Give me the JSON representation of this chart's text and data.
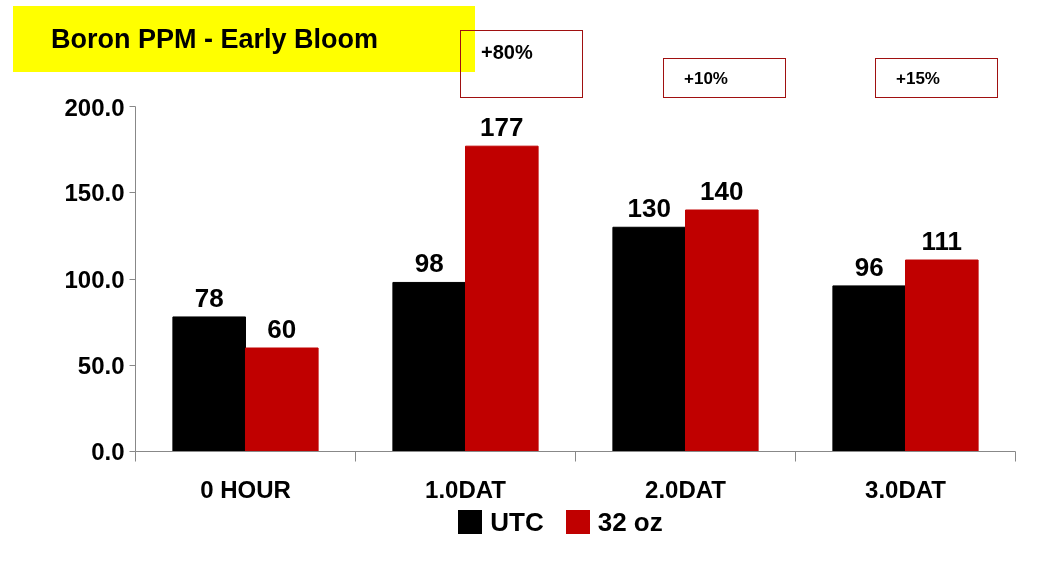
{
  "chart_data": {
    "type": "bar",
    "title": "Boron PPM - Early Bloom",
    "categories": [
      "0 HOUR",
      "1.0DAT",
      "2.0DAT",
      "3.0DAT"
    ],
    "series": [
      {
        "name": "UTC",
        "color": "#000000",
        "values": [
          78,
          98,
          130,
          96
        ]
      },
      {
        "name": "32 oz",
        "color": "#c00000",
        "values": [
          60,
          177,
          140,
          111
        ]
      }
    ],
    "ylim": [
      0,
      200
    ],
    "yticks": [
      {
        "value": 0,
        "label": "0.0"
      },
      {
        "value": 50,
        "label": "50.0"
      },
      {
        "value": 100,
        "label": "100.0"
      },
      {
        "value": 150,
        "label": "150.0"
      },
      {
        "value": 200,
        "label": "200.0"
      }
    ],
    "data_labels": true,
    "grid": false,
    "legend": "bottom",
    "annotations": [
      "+80%",
      "+10%",
      "+15%"
    ]
  }
}
